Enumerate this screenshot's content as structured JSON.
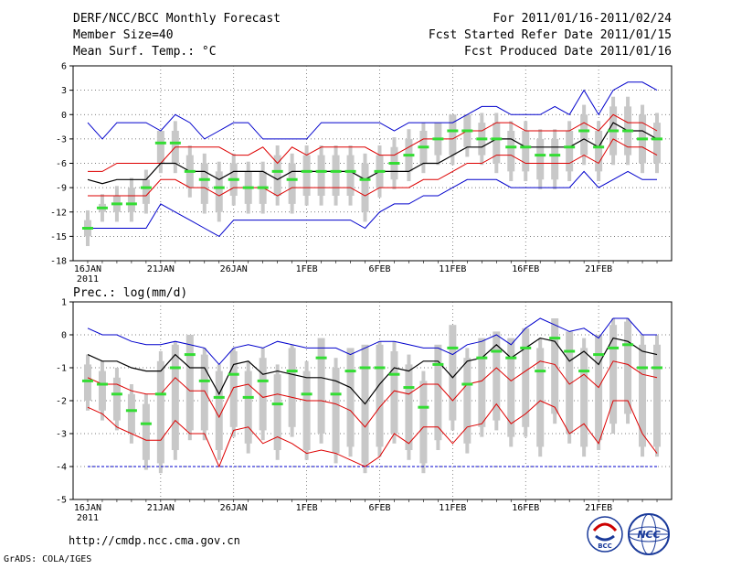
{
  "header": {
    "title": "DERF/NCC/BCC Monthly Forecast",
    "member_size": "Member Size=40",
    "variable": "Mean Surf. Temp.: °C",
    "period": "For 2011/01/16-2011/02/24",
    "start_date": "Fcst Started Refer Date 2011/01/15",
    "produced_date": "Fcst Produced Date 2011/01/16"
  },
  "footer": {
    "url": "http://cmdp.ncc.cma.gov.cn",
    "credit": "GrADS: COLA/IGES",
    "logo_bcc": "BCC",
    "logo_ncc": "NCC"
  },
  "colors": {
    "spread": "#c8c8c8",
    "median": "#33dd33",
    "mean": "#000000",
    "sd": "#dd0000",
    "extreme": "#0000cc"
  },
  "chart_data": [
    {
      "type": "line",
      "title": "Mean Surf. Temp.: °C",
      "x_tick_labels": [
        "16JAN",
        "21JAN",
        "26JAN",
        "1FEB",
        "6FEB",
        "11FEB",
        "16FEB",
        "21FEB"
      ],
      "x_sub_label": "2011",
      "x": [
        1,
        2,
        3,
        4,
        5,
        6,
        7,
        8,
        9,
        10,
        11,
        12,
        13,
        14,
        15,
        16,
        17,
        18,
        19,
        20,
        21,
        22,
        23,
        24,
        25,
        26,
        27,
        28,
        29,
        30,
        31,
        32,
        33,
        34,
        35,
        36,
        37,
        38,
        39,
        40
      ],
      "ylim": [
        -18,
        6
      ],
      "yticks": [
        -18,
        -15,
        -12,
        -9,
        -6,
        -3,
        0,
        3,
        6
      ],
      "series": [
        {
          "name": "max",
          "values": [
            -1,
            -3,
            -1,
            -1,
            -1,
            -2,
            0,
            -1,
            -3,
            -2,
            -1,
            -1,
            -3,
            -3,
            -3,
            -3,
            -1,
            -1,
            -1,
            -1,
            -1,
            -2,
            -1,
            -1,
            -1,
            -1,
            0,
            1,
            1,
            0,
            0,
            0,
            1,
            0,
            3,
            0,
            3,
            4,
            4,
            3
          ]
        },
        {
          "name": "sd_high",
          "values": [
            -7,
            -7,
            -6,
            -6,
            -6,
            -6,
            -4,
            -4,
            -4,
            -4,
            -5,
            -5,
            -4,
            -6,
            -4,
            -5,
            -4,
            -4,
            -4,
            -4,
            -5,
            -5,
            -4,
            -3,
            -3,
            -3,
            -2,
            -2,
            -1,
            -1,
            -2,
            -2,
            -2,
            -2,
            -1,
            -2,
            0,
            -1,
            -1,
            -2
          ]
        },
        {
          "name": "mean",
          "values": [
            -8,
            -8.5,
            -8,
            -8,
            -8,
            -6,
            -6,
            -7,
            -7,
            -8,
            -7,
            -7,
            -7,
            -8,
            -7,
            -7,
            -7,
            -7,
            -7,
            -8,
            -7,
            -7,
            -7,
            -6,
            -6,
            -5,
            -4,
            -4,
            -3,
            -3,
            -4,
            -4,
            -4,
            -4,
            -3,
            -4,
            -1,
            -2,
            -2,
            -3
          ]
        },
        {
          "name": "sd_low",
          "values": [
            -10,
            -10,
            -10,
            -10,
            -10,
            -8,
            -8,
            -9,
            -9,
            -10,
            -9,
            -9,
            -9,
            -10,
            -9,
            -9,
            -9,
            -9,
            -9,
            -10,
            -9,
            -9,
            -9,
            -8,
            -8,
            -7,
            -6,
            -6,
            -5,
            -5,
            -6,
            -6,
            -6,
            -6,
            -5,
            -6,
            -3,
            -4,
            -4,
            -5
          ]
        },
        {
          "name": "min",
          "values": [
            -14,
            -14,
            -14,
            -14,
            -14,
            -11,
            -12,
            -13,
            -14,
            -15,
            -13,
            -13,
            -13,
            -13,
            -13,
            -13,
            -13,
            -13,
            -13,
            -14,
            -12,
            -11,
            -11,
            -10,
            -10,
            -9,
            -8,
            -8,
            -8,
            -9,
            -9,
            -9,
            -9,
            -9,
            -7,
            -9,
            -8,
            -7,
            -8,
            -8
          ]
        },
        {
          "name": "median",
          "values": [
            -14,
            -11.5,
            -11,
            -11,
            -9,
            -3.5,
            -3.5,
            -7,
            -8,
            -9,
            -8,
            -9,
            -9,
            -7,
            -8,
            -7,
            -7,
            -7,
            -7,
            -8,
            -7,
            -6,
            -5,
            -4,
            -3,
            -2,
            -2,
            -3,
            -3,
            -4,
            -4,
            -5,
            -5,
            -4,
            -2,
            -4,
            -2,
            -2,
            -3,
            -3
          ]
        },
        {
          "name": "q_high",
          "values": [
            -13,
            -11,
            -10,
            -9,
            -8,
            -2,
            -2,
            -5,
            -6,
            -7,
            -6,
            -7,
            -7,
            -5,
            -6,
            -5,
            -5,
            -5,
            -5,
            -6,
            -5,
            -4,
            -3,
            -2,
            -1,
            0,
            0,
            -1,
            -1,
            -2,
            -2,
            -3,
            -3,
            -2,
            0,
            -2,
            1,
            1,
            0,
            -1
          ]
        },
        {
          "name": "q_low",
          "values": [
            -15,
            -12,
            -12,
            -12,
            -11,
            -6,
            -6,
            -9,
            -11,
            -12,
            -10,
            -11,
            -11,
            -10,
            -11,
            -10,
            -10,
            -10,
            -10,
            -12,
            -9,
            -8,
            -7,
            -6,
            -5,
            -5,
            -4,
            -5,
            -6,
            -7,
            -7,
            -8,
            -8,
            -7,
            -5,
            -7,
            -5,
            -5,
            -6,
            -6
          ]
        }
      ]
    },
    {
      "type": "line",
      "title": "Prec.: log(mm/d)",
      "x_tick_labels": [
        "16JAN",
        "21JAN",
        "26JAN",
        "1FEB",
        "6FEB",
        "11FEB",
        "16FEB",
        "21FEB"
      ],
      "x_sub_label": "2011",
      "x": [
        1,
        2,
        3,
        4,
        5,
        6,
        7,
        8,
        9,
        10,
        11,
        12,
        13,
        14,
        15,
        16,
        17,
        18,
        19,
        20,
        21,
        22,
        23,
        24,
        25,
        26,
        27,
        28,
        29,
        30,
        31,
        32,
        33,
        34,
        35,
        36,
        37,
        38,
        39,
        40
      ],
      "ylim": [
        -5,
        1
      ],
      "yticks": [
        -5,
        -4,
        -3,
        -2,
        -1,
        0,
        1
      ],
      "series": [
        {
          "name": "max",
          "values": [
            0.2,
            0,
            0,
            -0.2,
            -0.3,
            -0.3,
            -0.2,
            -0.3,
            -0.4,
            -0.9,
            -0.4,
            -0.3,
            -0.4,
            -0.2,
            -0.3,
            -0.4,
            -0.4,
            -0.4,
            -0.6,
            -0.4,
            -0.2,
            -0.2,
            -0.3,
            -0.4,
            -0.4,
            -0.6,
            -0.3,
            -0.2,
            0,
            -0.3,
            0.2,
            0.5,
            0.3,
            0.1,
            0.2,
            -0.1,
            0.5,
            0.5,
            0,
            0
          ]
        },
        {
          "name": "mean",
          "values": [
            -0.6,
            -0.8,
            -0.8,
            -1,
            -1.1,
            -1.1,
            -0.6,
            -1,
            -1,
            -1.8,
            -0.9,
            -0.8,
            -1.2,
            -1.1,
            -1.2,
            -1.3,
            -1.3,
            -1.4,
            -1.6,
            -2.1,
            -1.5,
            -1,
            -1.1,
            -0.8,
            -0.8,
            -1.3,
            -0.8,
            -0.7,
            -0.3,
            -0.7,
            -0.4,
            -0.1,
            -0.2,
            -0.8,
            -0.5,
            -0.9,
            -0.1,
            -0.2,
            -0.5,
            -0.6
          ]
        },
        {
          "name": "sd_high",
          "values": [
            -1.3,
            -1.5,
            -1.5,
            -1.7,
            -1.8,
            -1.8,
            -1.3,
            -1.7,
            -1.7,
            -2.5,
            -1.6,
            -1.5,
            -1.9,
            -1.8,
            -1.9,
            -2,
            -2,
            -2.1,
            -2.3,
            -2.8,
            -2.2,
            -1.7,
            -1.8,
            -1.5,
            -1.5,
            -2,
            -1.5,
            -1.4,
            -1,
            -1.4,
            -1.1,
            -0.8,
            -0.9,
            -1.5,
            -1.2,
            -1.6,
            -0.8,
            -0.9,
            -1.2,
            -1.3
          ]
        },
        {
          "name": "sd_low",
          "values": [
            -2.2,
            -2.4,
            -2.8,
            -3,
            -3.2,
            -3.2,
            -2.6,
            -3,
            -3,
            -4,
            -2.9,
            -2.8,
            -3.3,
            -3.1,
            -3.3,
            -3.6,
            -3.5,
            -3.6,
            -3.8,
            -4,
            -3.7,
            -3,
            -3.3,
            -2.8,
            -2.8,
            -3.3,
            -2.8,
            -2.7,
            -2.1,
            -2.7,
            -2.4,
            -2,
            -2.2,
            -3,
            -2.7,
            -3.3,
            -2,
            -2,
            -3,
            -3.6
          ]
        },
        {
          "name": "min",
          "values": [
            -4,
            -4,
            -4,
            -4,
            -4,
            -4,
            -4,
            -4,
            -4,
            -4,
            -4,
            -4,
            -4,
            -4,
            -4,
            -4,
            -4,
            -4,
            -4,
            -4,
            -4,
            -4,
            -4,
            -4,
            -4,
            -4,
            -4,
            -4,
            -4,
            -4,
            -4,
            -4,
            -4,
            -4,
            -4,
            -4,
            -4,
            -4,
            -4,
            -4
          ]
        },
        {
          "name": "median",
          "values": [
            -1.4,
            -1.5,
            -1.8,
            -2.3,
            -2.7,
            -1.8,
            -1,
            -0.6,
            -1.4,
            -1.9,
            -1.2,
            -1.9,
            -1.4,
            -2.1,
            -1.1,
            -1.8,
            -0.7,
            -1.8,
            -1.1,
            -1,
            -1,
            -1.2,
            -1.6,
            -2.2,
            -0.9,
            -0.4,
            -1.5,
            -0.7,
            -0.5,
            -0.7,
            -0.4,
            -1.1,
            -0.1,
            -0.5,
            -1.1,
            -0.6,
            -0.4,
            -0.3,
            -1.0,
            -1.0
          ]
        },
        {
          "name": "q_high",
          "values": [
            -0.9,
            -1.1,
            -1.3,
            -1.8,
            -2.1,
            -0.8,
            -0.3,
            0,
            -0.6,
            -1.1,
            -0.5,
            -1.1,
            -0.7,
            -1.2,
            -0.4,
            -1.1,
            -0.1,
            -1,
            -0.4,
            -0.3,
            -0.3,
            -0.5,
            -0.9,
            -1.4,
            -0.3,
            0.3,
            -0.7,
            -0.1,
            0.1,
            -0.1,
            0.2,
            -0.4,
            0.5,
            0.1,
            -0.4,
            0,
            0.3,
            0.4,
            -0.3,
            -0.3
          ]
        },
        {
          "name": "q_low",
          "values": [
            -2,
            -2.3,
            -2.6,
            -3,
            -3.8,
            -3.9,
            -3.5,
            -2.9,
            -2.9,
            -3.5,
            -2.8,
            -3.3,
            -2.9,
            -3.5,
            -2.8,
            -3.5,
            -3,
            -3.6,
            -3.4,
            -3.9,
            -3.4,
            -3,
            -3.5,
            -3.9,
            -3.2,
            -2.6,
            -3.3,
            -2.8,
            -2.6,
            -3.1,
            -2.8,
            -3.4,
            -2.4,
            -3,
            -3.4,
            -3.2,
            -2.7,
            -2.4,
            -3.4,
            -3.4
          ]
        }
      ]
    }
  ]
}
